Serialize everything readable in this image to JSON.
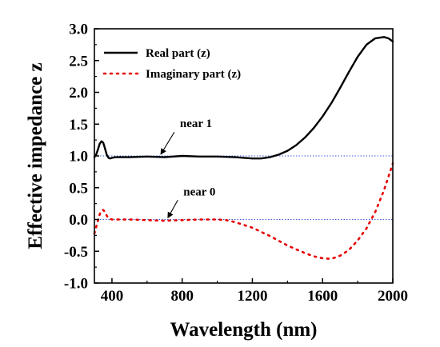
{
  "chart_data": {
    "type": "line",
    "xlabel": "Wavelength (nm)",
    "ylabel": "Effective impedance z",
    "xlim": [
      300,
      2000
    ],
    "ylim": [
      -1.0,
      3.0
    ],
    "xticks": [
      400,
      800,
      1200,
      1600,
      2000
    ],
    "yticks": [
      -1.0,
      -0.5,
      0.0,
      0.5,
      1.0,
      1.5,
      2.0,
      2.5,
      3.0
    ],
    "xtick_labels": [
      "400",
      "800",
      "1200",
      "1600",
      "2000"
    ],
    "ytick_labels": [
      "-1.0",
      "-0.5",
      "0.0",
      "0.5",
      "1.0",
      "1.5",
      "2.0",
      "2.5",
      "3.0"
    ],
    "legend_position": "top-left",
    "grid": false,
    "series": [
      {
        "name": "Real part (z)",
        "style": "solid",
        "color": "#000000",
        "x": [
          300,
          310,
          320,
          330,
          340,
          350,
          360,
          370,
          380,
          390,
          400,
          420,
          450,
          500,
          600,
          700,
          800,
          900,
          1000,
          1100,
          1200,
          1250,
          1300,
          1350,
          1400,
          1450,
          1500,
          1550,
          1600,
          1650,
          1700,
          1750,
          1800,
          1850,
          1900,
          1950,
          1975,
          2000
        ],
        "y": [
          0.98,
          1.02,
          1.1,
          1.19,
          1.23,
          1.21,
          1.12,
          1.02,
          0.97,
          0.96,
          0.97,
          0.98,
          0.98,
          0.98,
          0.99,
          0.98,
          1.0,
          0.99,
          0.99,
          0.98,
          0.96,
          0.96,
          0.98,
          1.02,
          1.08,
          1.17,
          1.29,
          1.44,
          1.62,
          1.83,
          2.07,
          2.32,
          2.56,
          2.75,
          2.85,
          2.87,
          2.85,
          2.8
        ]
      },
      {
        "name": "Imaginary part (z)",
        "style": "dotted",
        "color": "#e60000",
        "x": [
          300,
          310,
          320,
          330,
          340,
          350,
          360,
          370,
          380,
          400,
          450,
          500,
          600,
          700,
          800,
          900,
          1000,
          1050,
          1100,
          1200,
          1300,
          1400,
          1500,
          1550,
          1600,
          1650,
          1700,
          1750,
          1800,
          1850,
          1900,
          1950,
          2000
        ],
        "y": [
          -0.22,
          -0.12,
          -0.02,
          0.08,
          0.14,
          0.15,
          0.12,
          0.06,
          0.02,
          0.0,
          0.0,
          0.0,
          -0.01,
          -0.02,
          -0.01,
          0.0,
          0.0,
          -0.01,
          -0.04,
          -0.13,
          -0.26,
          -0.41,
          -0.53,
          -0.58,
          -0.61,
          -0.62,
          -0.57,
          -0.48,
          -0.33,
          -0.14,
          0.12,
          0.46,
          0.88
        ]
      }
    ],
    "reference_lines": [
      {
        "y": 1.0,
        "style": "dotted",
        "color": "#3b5bd6"
      },
      {
        "y": 0.0,
        "style": "dotted",
        "color": "#3b5bd6"
      }
    ],
    "annotations": [
      {
        "text": "near 1",
        "point_x": 660,
        "point_y": 1.0,
        "text_x": 810,
        "text_y": 1.45
      },
      {
        "text": "near 0",
        "point_x": 700,
        "point_y": 0.0,
        "text_x": 830,
        "text_y": 0.38
      }
    ]
  }
}
